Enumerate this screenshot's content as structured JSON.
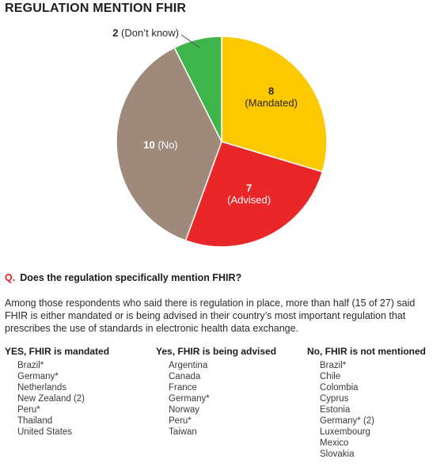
{
  "title": "REGULATION MENTION FHIR",
  "chart_data": {
    "type": "pie",
    "title": "REGULATION MENTION FHIR",
    "slices": [
      {
        "label": "Mandated",
        "value": 8,
        "color": "#fcc800"
      },
      {
        "label": "Advised",
        "value": 7,
        "color": "#e92628"
      },
      {
        "label": "No",
        "value": 10,
        "color": "#9f897a"
      },
      {
        "label": "Don’t know",
        "value": 2,
        "color": "#3db54a"
      }
    ],
    "slice_labels": [
      {
        "value": "8",
        "text": "(Mandated)"
      },
      {
        "value": "7",
        "text": "(Advised)"
      },
      {
        "value": "10",
        "text": "(No)"
      },
      {
        "value": "2",
        "text": "(Don’t know)"
      }
    ]
  },
  "question": {
    "marker": "Q.",
    "text": "Does the regulation specifically mention FHIR?"
  },
  "description": "Among those respondents who said there is regulation in place, more than half (15 of 27) said FHIR is either mandated or is being advised in their country’s most important regulation that prescribes the use of standards in electronic health data exchange.",
  "columns": [
    {
      "heading": "YES, FHIR is mandated",
      "items": [
        "Brazil*",
        "Germany*",
        "Netherlands",
        "New Zealand (2)",
        "Peru*",
        "Thailand",
        "United States"
      ]
    },
    {
      "heading": "Yes, FHIR is being advised",
      "items": [
        "Argentina",
        "Canada",
        "France",
        "Germany*",
        "Norway",
        "Peru*",
        "Taiwan"
      ]
    },
    {
      "heading": "No, FHIR is not mentioned",
      "items": [
        "Brazil*",
        "Chile",
        "Colombia",
        "Cyprus",
        "Estonia",
        "Germany* (2)",
        "Luxembourg",
        "Mexico",
        "Slovakia"
      ]
    }
  ]
}
